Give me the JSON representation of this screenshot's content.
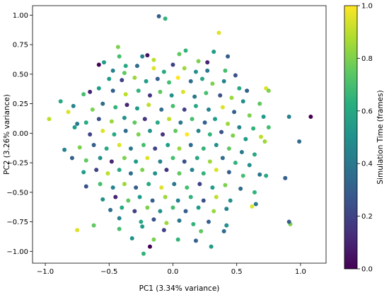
{
  "chart_data": {
    "type": "scatter",
    "title": "",
    "xlabel": "PC1 (3.34% variance)",
    "ylabel": "PC2 (3.26% variance)",
    "xlim": [
      -1.1,
      1.2
    ],
    "ylim": [
      -1.1,
      1.08
    ],
    "xticks": [
      -1.0,
      -0.5,
      0.0,
      0.5,
      1.0
    ],
    "xtick_labels": [
      "−1.0",
      "−0.5",
      "0.0",
      "0.5",
      "1.0"
    ],
    "yticks": [
      -1.0,
      -0.75,
      -0.5,
      -0.25,
      0.0,
      0.25,
      0.5,
      0.75,
      1.0
    ],
    "ytick_labels": [
      "−1.00",
      "−0.75",
      "−0.50",
      "−0.25",
      "0.00",
      "0.25",
      "0.50",
      "0.75",
      "1.00"
    ],
    "grid": false,
    "colormap": "viridis",
    "colorbar": {
      "label": "Simulation Time (frames)",
      "range": [
        0.0,
        1.0
      ],
      "ticks": [
        0.0,
        0.2,
        0.4,
        0.6,
        0.8,
        1.0
      ],
      "tick_labels": [
        "0.0",
        "0.2",
        "0.4",
        "0.6",
        "0.8",
        "1.0"
      ]
    },
    "points": [
      {
        "x": -0.11,
        "y": 0.99,
        "c": 0.3
      },
      {
        "x": -0.06,
        "y": 0.97,
        "c": 0.65
      },
      {
        "x": 0.36,
        "y": 0.85,
        "c": 0.95
      },
      {
        "x": -0.43,
        "y": 0.73,
        "c": 0.8
      },
      {
        "x": -0.58,
        "y": 0.58,
        "c": 0.0
      },
      {
        "x": -0.54,
        "y": 0.6,
        "c": 0.55
      },
      {
        "x": -0.42,
        "y": 0.65,
        "c": 0.7
      },
      {
        "x": -0.37,
        "y": 0.57,
        "c": 0.6
      },
      {
        "x": -0.24,
        "y": 0.65,
        "c": 0.45
      },
      {
        "x": -0.2,
        "y": 0.66,
        "c": 0.05
      },
      {
        "x": -0.15,
        "y": 0.62,
        "c": 0.9
      },
      {
        "x": 0.05,
        "y": 0.67,
        "c": 0.75
      },
      {
        "x": 0.1,
        "y": 0.7,
        "c": 0.65
      },
      {
        "x": 0.2,
        "y": 0.61,
        "c": 0.8
      },
      {
        "x": 0.27,
        "y": 0.6,
        "c": 0.1
      },
      {
        "x": 0.32,
        "y": 0.69,
        "c": 0.55
      },
      {
        "x": 0.43,
        "y": 0.65,
        "c": 0.3
      },
      {
        "x": -0.47,
        "y": 0.53,
        "c": 0.45
      },
      {
        "x": -0.38,
        "y": 0.51,
        "c": 0.75
      },
      {
        "x": -0.28,
        "y": 0.57,
        "c": 0.35
      },
      {
        "x": -0.15,
        "y": 0.55,
        "c": 0.95
      },
      {
        "x": -0.07,
        "y": 0.52,
        "c": 0.6
      },
      {
        "x": 0.0,
        "y": 0.58,
        "c": 0.2
      },
      {
        "x": 0.09,
        "y": 0.55,
        "c": 0.85
      },
      {
        "x": 0.18,
        "y": 0.52,
        "c": 0.5
      },
      {
        "x": 0.27,
        "y": 0.53,
        "c": 0.4
      },
      {
        "x": 0.41,
        "y": 0.53,
        "c": 0.7
      },
      {
        "x": 0.49,
        "y": 0.49,
        "c": 0.25
      },
      {
        "x": -0.5,
        "y": 0.46,
        "c": 0.55
      },
      {
        "x": -0.4,
        "y": 0.45,
        "c": 0.2
      },
      {
        "x": -0.3,
        "y": 0.47,
        "c": 0.85
      },
      {
        "x": -0.21,
        "y": 0.44,
        "c": 0.55
      },
      {
        "x": -0.12,
        "y": 0.46,
        "c": 0.3
      },
      {
        "x": -0.03,
        "y": 0.43,
        "c": 0.7
      },
      {
        "x": 0.04,
        "y": 0.47,
        "c": 1.0
      },
      {
        "x": 0.14,
        "y": 0.44,
        "c": 0.35
      },
      {
        "x": 0.23,
        "y": 0.46,
        "c": 0.6
      },
      {
        "x": 0.31,
        "y": 0.42,
        "c": 0.8
      },
      {
        "x": 0.4,
        "y": 0.44,
        "c": 0.45
      },
      {
        "x": 0.52,
        "y": 0.38,
        "c": 0.6
      },
      {
        "x": 0.58,
        "y": 0.36,
        "c": 0.3
      },
      {
        "x": 0.73,
        "y": 0.38,
        "c": 0.95
      },
      {
        "x": 0.75,
        "y": 0.36,
        "c": 0.8
      },
      {
        "x": -0.82,
        "y": 0.18,
        "c": 0.95
      },
      {
        "x": -0.78,
        "y": 0.23,
        "c": 0.45
      },
      {
        "x": -0.88,
        "y": 0.27,
        "c": 0.6
      },
      {
        "x": -0.65,
        "y": 0.35,
        "c": 0.1
      },
      {
        "x": -0.7,
        "y": 0.33,
        "c": 0.7
      },
      {
        "x": -0.58,
        "y": 0.38,
        "c": 0.55
      },
      {
        "x": -0.47,
        "y": 0.36,
        "c": 0.3
      },
      {
        "x": -0.37,
        "y": 0.33,
        "c": 0.9
      },
      {
        "x": -0.27,
        "y": 0.36,
        "c": 0.65
      },
      {
        "x": -0.18,
        "y": 0.32,
        "c": 0.15
      },
      {
        "x": -0.1,
        "y": 0.35,
        "c": 0.75
      },
      {
        "x": -0.01,
        "y": 0.32,
        "c": 0.5
      },
      {
        "x": 0.08,
        "y": 0.35,
        "c": 0.95
      },
      {
        "x": 0.17,
        "y": 0.31,
        "c": 0.4
      },
      {
        "x": 0.26,
        "y": 0.34,
        "c": 0.7
      },
      {
        "x": 0.37,
        "y": 0.32,
        "c": 0.25
      },
      {
        "x": 0.46,
        "y": 0.3,
        "c": 0.85
      },
      {
        "x": 0.55,
        "y": 0.27,
        "c": 0.5
      },
      {
        "x": 0.68,
        "y": 0.25,
        "c": 0.75
      },
      {
        "x": -0.97,
        "y": 0.12,
        "c": 0.9
      },
      {
        "x": -0.75,
        "y": 0.08,
        "c": 0.4
      },
      {
        "x": -0.63,
        "y": 0.2,
        "c": 0.8
      },
      {
        "x": -0.55,
        "y": 0.25,
        "c": 0.35
      },
      {
        "x": -0.45,
        "y": 0.22,
        "c": 0.65
      },
      {
        "x": -0.36,
        "y": 0.24,
        "c": 0.1
      },
      {
        "x": -0.28,
        "y": 0.21,
        "c": 0.55
      },
      {
        "x": -0.19,
        "y": 0.24,
        "c": 0.9
      },
      {
        "x": -0.09,
        "y": 0.2,
        "c": 0.35
      },
      {
        "x": 0.0,
        "y": 0.23,
        "c": 0.7
      },
      {
        "x": 0.09,
        "y": 0.2,
        "c": 0.2
      },
      {
        "x": 0.18,
        "y": 0.23,
        "c": 0.6
      },
      {
        "x": 0.28,
        "y": 0.2,
        "c": 0.45
      },
      {
        "x": 0.39,
        "y": 0.22,
        "c": 0.95
      },
      {
        "x": 0.48,
        "y": 0.18,
        "c": 0.3
      },
      {
        "x": 0.6,
        "y": 0.15,
        "c": 0.8
      },
      {
        "x": 0.71,
        "y": 0.14,
        "c": 0.55
      },
      {
        "x": 0.91,
        "y": 0.14,
        "c": 0.45
      },
      {
        "x": 1.08,
        "y": 0.14,
        "c": 0.0
      },
      {
        "x": -0.68,
        "y": 0.09,
        "c": 0.6
      },
      {
        "x": -0.58,
        "y": 0.12,
        "c": 0.25
      },
      {
        "x": -0.48,
        "y": 0.1,
        "c": 0.85
      },
      {
        "x": -0.38,
        "y": 0.13,
        "c": 0.5
      },
      {
        "x": -0.3,
        "y": 0.09,
        "c": 0.75
      },
      {
        "x": -0.22,
        "y": 0.12,
        "c": 0.15
      },
      {
        "x": -0.12,
        "y": 0.09,
        "c": 0.6
      },
      {
        "x": -0.03,
        "y": 0.12,
        "c": 0.9
      },
      {
        "x": 0.06,
        "y": 0.09,
        "c": 0.4
      },
      {
        "x": 0.15,
        "y": 0.12,
        "c": 0.7
      },
      {
        "x": 0.25,
        "y": 0.09,
        "c": 0.3
      },
      {
        "x": 0.33,
        "y": 0.12,
        "c": 0.55
      },
      {
        "x": 0.43,
        "y": 0.08,
        "c": 0.85
      },
      {
        "x": 0.52,
        "y": 0.05,
        "c": 0.45
      },
      {
        "x": 0.63,
        "y": 0.04,
        "c": 0.65
      },
      {
        "x": 0.75,
        "y": 0.05,
        "c": 0.7
      },
      {
        "x": 0.69,
        "y": -0.03,
        "c": 0.9
      },
      {
        "x": -0.77,
        "y": 0.05,
        "c": 0.55
      },
      {
        "x": -0.65,
        "y": -0.01,
        "c": 0.2
      },
      {
        "x": -0.55,
        "y": 0.02,
        "c": 0.95
      },
      {
        "x": -0.46,
        "y": -0.01,
        "c": 0.6
      },
      {
        "x": -0.37,
        "y": 0.02,
        "c": 0.35
      },
      {
        "x": -0.27,
        "y": -0.01,
        "c": 0.8
      },
      {
        "x": -0.18,
        "y": 0.02,
        "c": 0.5
      },
      {
        "x": -0.08,
        "y": -0.01,
        "c": 0.15
      },
      {
        "x": 0.02,
        "y": 0.02,
        "c": 0.75
      },
      {
        "x": 0.11,
        "y": -0.01,
        "c": 1.0
      },
      {
        "x": 0.2,
        "y": 0.02,
        "c": 0.45
      },
      {
        "x": 0.29,
        "y": -0.01,
        "c": 0.65
      },
      {
        "x": 0.38,
        "y": 0.01,
        "c": 0.25
      },
      {
        "x": 0.47,
        "y": -0.02,
        "c": 0.8
      },
      {
        "x": 0.57,
        "y": -0.05,
        "c": 0.55
      },
      {
        "x": 0.99,
        "y": -0.07,
        "c": 0.35
      },
      {
        "x": 0.72,
        "y": -0.07,
        "c": 0.85
      },
      {
        "x": -0.85,
        "y": -0.14,
        "c": 0.45
      },
      {
        "x": -0.73,
        "y": -0.12,
        "c": 0.8
      },
      {
        "x": -0.62,
        "y": -0.1,
        "c": 0.3
      },
      {
        "x": -0.52,
        "y": -0.13,
        "c": 0.6
      },
      {
        "x": -0.42,
        "y": -0.1,
        "c": 0.95
      },
      {
        "x": -0.33,
        "y": -0.13,
        "c": 0.4
      },
      {
        "x": -0.23,
        "y": -0.1,
        "c": 0.7
      },
      {
        "x": -0.14,
        "y": -0.13,
        "c": 0.2
      },
      {
        "x": -0.04,
        "y": -0.1,
        "c": 0.55
      },
      {
        "x": 0.05,
        "y": -0.13,
        "c": 0.85
      },
      {
        "x": 0.14,
        "y": -0.1,
        "c": 0.35
      },
      {
        "x": 0.24,
        "y": -0.13,
        "c": 0.65
      },
      {
        "x": 0.34,
        "y": -0.1,
        "c": 0.5
      },
      {
        "x": 0.44,
        "y": -0.13,
        "c": 0.75
      },
      {
        "x": 0.54,
        "y": -0.16,
        "c": 0.4
      },
      {
        "x": 0.64,
        "y": -0.18,
        "c": 0.6
      },
      {
        "x": -0.79,
        "y": -0.21,
        "c": 0.3
      },
      {
        "x": -0.68,
        "y": -0.23,
        "c": 0.75
      },
      {
        "x": -0.57,
        "y": -0.21,
        "c": 0.5
      },
      {
        "x": -0.48,
        "y": -0.24,
        "c": 0.1
      },
      {
        "x": -0.38,
        "y": -0.21,
        "c": 0.8
      },
      {
        "x": -0.29,
        "y": -0.24,
        "c": 0.55
      },
      {
        "x": -0.2,
        "y": -0.21,
        "c": 0.95
      },
      {
        "x": -0.1,
        "y": -0.24,
        "c": 0.45
      },
      {
        "x": 0.0,
        "y": -0.21,
        "c": 0.7
      },
      {
        "x": 0.09,
        "y": -0.24,
        "c": 0.25
      },
      {
        "x": 0.19,
        "y": -0.21,
        "c": 0.6
      },
      {
        "x": 0.29,
        "y": -0.24,
        "c": 0.85
      },
      {
        "x": 0.39,
        "y": -0.21,
        "c": 0.35
      },
      {
        "x": 0.49,
        "y": -0.25,
        "c": 0.65
      },
      {
        "x": 0.6,
        "y": -0.27,
        "c": 0.5
      },
      {
        "x": -0.7,
        "y": -0.33,
        "c": 0.55
      },
      {
        "x": -0.6,
        "y": -0.31,
        "c": 0.2
      },
      {
        "x": -0.51,
        "y": -0.34,
        "c": 0.9
      },
      {
        "x": -0.42,
        "y": -0.31,
        "c": 0.6
      },
      {
        "x": -0.33,
        "y": -0.34,
        "c": 0.35
      },
      {
        "x": -0.24,
        "y": -0.31,
        "c": 0.8
      },
      {
        "x": -0.14,
        "y": -0.34,
        "c": 0.5
      },
      {
        "x": -0.05,
        "y": -0.31,
        "c": 0.15
      },
      {
        "x": 0.05,
        "y": -0.34,
        "c": 0.75
      },
      {
        "x": 0.15,
        "y": -0.31,
        "c": 0.45
      },
      {
        "x": 0.24,
        "y": -0.34,
        "c": 0.65
      },
      {
        "x": 0.34,
        "y": -0.31,
        "c": 0.95
      },
      {
        "x": 0.44,
        "y": -0.33,
        "c": 0.3
      },
      {
        "x": 0.55,
        "y": -0.36,
        "c": 0.7
      },
      {
        "x": 0.68,
        "y": -0.35,
        "c": 0.4
      },
      {
        "x": 0.73,
        "y": -0.36,
        "c": 0.6
      },
      {
        "x": -0.68,
        "y": -0.45,
        "c": 0.25
      },
      {
        "x": -0.57,
        "y": -0.43,
        "c": 0.7
      },
      {
        "x": -0.47,
        "y": -0.46,
        "c": 0.45
      },
      {
        "x": -0.38,
        "y": -0.43,
        "c": 0.85
      },
      {
        "x": -0.29,
        "y": -0.46,
        "c": 0.3
      },
      {
        "x": -0.19,
        "y": -0.43,
        "c": 0.6
      },
      {
        "x": -0.09,
        "y": -0.46,
        "c": 0.95
      },
      {
        "x": 0.01,
        "y": -0.43,
        "c": 0.4
      },
      {
        "x": 0.11,
        "y": -0.46,
        "c": 0.7
      },
      {
        "x": 0.21,
        "y": -0.43,
        "c": 0.2
      },
      {
        "x": 0.31,
        "y": -0.46,
        "c": 0.55
      },
      {
        "x": 0.41,
        "y": -0.44,
        "c": 0.8
      },
      {
        "x": 0.53,
        "y": -0.47,
        "c": 0.35
      },
      {
        "x": 0.64,
        "y": -0.5,
        "c": 0.65
      },
      {
        "x": 0.88,
        "y": -0.38,
        "c": 0.3
      },
      {
        "x": -0.55,
        "y": -0.56,
        "c": 0.5
      },
      {
        "x": -0.45,
        "y": -0.54,
        "c": 0.1
      },
      {
        "x": -0.35,
        "y": -0.57,
        "c": 0.75
      },
      {
        "x": -0.26,
        "y": -0.54,
        "c": 0.55
      },
      {
        "x": -0.16,
        "y": -0.57,
        "c": 0.3
      },
      {
        "x": -0.06,
        "y": -0.54,
        "c": 0.85
      },
      {
        "x": 0.04,
        "y": -0.57,
        "c": 0.45
      },
      {
        "x": 0.14,
        "y": -0.54,
        "c": 0.65
      },
      {
        "x": 0.24,
        "y": -0.57,
        "c": 0.25
      },
      {
        "x": 0.34,
        "y": -0.54,
        "c": 0.9
      },
      {
        "x": 0.45,
        "y": -0.57,
        "c": 0.5
      },
      {
        "x": 0.65,
        "y": -0.6,
        "c": 0.4
      },
      {
        "x": -0.49,
        "y": -0.65,
        "c": 0.35
      },
      {
        "x": -0.4,
        "y": -0.63,
        "c": 0.6
      },
      {
        "x": -0.3,
        "y": -0.66,
        "c": 0.2
      },
      {
        "x": -0.2,
        "y": -0.63,
        "c": 0.8
      },
      {
        "x": -0.1,
        "y": -0.66,
        "c": 0.5
      },
      {
        "x": 0.0,
        "y": -0.63,
        "c": 0.7
      },
      {
        "x": 0.1,
        "y": -0.66,
        "c": 0.3
      },
      {
        "x": 0.2,
        "y": -0.63,
        "c": 0.55
      },
      {
        "x": 0.32,
        "y": -0.66,
        "c": 0.85
      },
      {
        "x": 0.42,
        "y": -0.64,
        "c": 0.45
      },
      {
        "x": 0.62,
        "y": -0.62,
        "c": 0.95
      },
      {
        "x": -0.62,
        "y": -0.78,
        "c": 0.75
      },
      {
        "x": -0.75,
        "y": -0.82,
        "c": 0.95
      },
      {
        "x": -0.42,
        "y": -0.72,
        "c": 0.45
      },
      {
        "x": -0.25,
        "y": -0.75,
        "c": 0.6
      },
      {
        "x": -0.15,
        "y": -0.73,
        "c": 0.25
      },
      {
        "x": -0.05,
        "y": -0.76,
        "c": 0.85
      },
      {
        "x": 0.05,
        "y": -0.74,
        "c": 0.4
      },
      {
        "x": 0.16,
        "y": -0.77,
        "c": 0.65
      },
      {
        "x": 0.28,
        "y": -0.75,
        "c": 0.3
      },
      {
        "x": 0.42,
        "y": -0.78,
        "c": 0.5
      },
      {
        "x": 0.92,
        "y": -0.77,
        "c": 0.8
      },
      {
        "x": 0.91,
        "y": -0.75,
        "c": 0.3
      },
      {
        "x": -0.42,
        "y": -0.81,
        "c": 0.7
      },
      {
        "x": -0.24,
        "y": -0.79,
        "c": 0.55
      },
      {
        "x": -0.07,
        "y": -0.82,
        "c": 0.2
      },
      {
        "x": 0.22,
        "y": -0.83,
        "c": 0.75
      },
      {
        "x": 0.4,
        "y": -0.83,
        "c": 0.35
      },
      {
        "x": -0.32,
        "y": -0.89,
        "c": 0.5
      },
      {
        "x": -0.15,
        "y": -0.9,
        "c": 0.8
      },
      {
        "x": 0.04,
        "y": -0.9,
        "c": 0.65
      },
      {
        "x": -0.18,
        "y": -0.96,
        "c": 0.0
      },
      {
        "x": -0.23,
        "y": -1.02,
        "c": 0.65
      },
      {
        "x": 0.18,
        "y": -0.91,
        "c": 0.3
      },
      {
        "x": 0.3,
        "y": -0.96,
        "c": 0.55
      }
    ]
  }
}
